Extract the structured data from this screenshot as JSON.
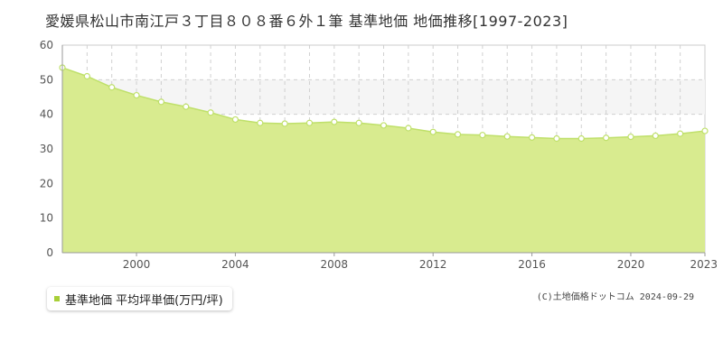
{
  "chart_title": "愛媛県松山市南江戸３丁目８０８番６外１筆 基準地価 地価推移[1997-2023]",
  "legend_label": "基準地価 平均坪単価(万円/坪)",
  "copyright": "(C)土地価格ドットコム 2024-09-29",
  "colors": {
    "fill": "#d8eb8f",
    "line": "#bfe06a",
    "band": "#f5f5f5",
    "marker": "#a8cf38"
  },
  "chart_data": {
    "type": "area",
    "title": "",
    "xlabel": "",
    "ylabel": "",
    "x": [
      1997,
      1998,
      1999,
      2000,
      2001,
      2002,
      2003,
      2004,
      2005,
      2006,
      2007,
      2008,
      2009,
      2010,
      2011,
      2012,
      2013,
      2014,
      2015,
      2016,
      2017,
      2018,
      2019,
      2020,
      2021,
      2022,
      2023
    ],
    "series": [
      {
        "name": "基準地価 平均坪単価(万円/坪)",
        "values": [
          53.5,
          51.0,
          47.8,
          45.5,
          43.6,
          42.2,
          40.5,
          38.5,
          37.5,
          37.3,
          37.5,
          37.8,
          37.5,
          36.8,
          36.0,
          34.9,
          34.2,
          34.0,
          33.6,
          33.3,
          33.0,
          33.0,
          33.2,
          33.5,
          33.8,
          34.4,
          35.2
        ]
      }
    ],
    "xlim": [
      1997,
      2023
    ],
    "ylim": [
      0,
      60
    ],
    "x_ticks": [
      "2000",
      "2004",
      "2008",
      "2012",
      "2016",
      "2020",
      "2023"
    ],
    "y_ticks": [
      "0",
      "10",
      "20",
      "30",
      "40",
      "50",
      "60"
    ],
    "shaded_band": [
      40,
      50
    ],
    "grid": true,
    "legend": "bottom-left"
  }
}
